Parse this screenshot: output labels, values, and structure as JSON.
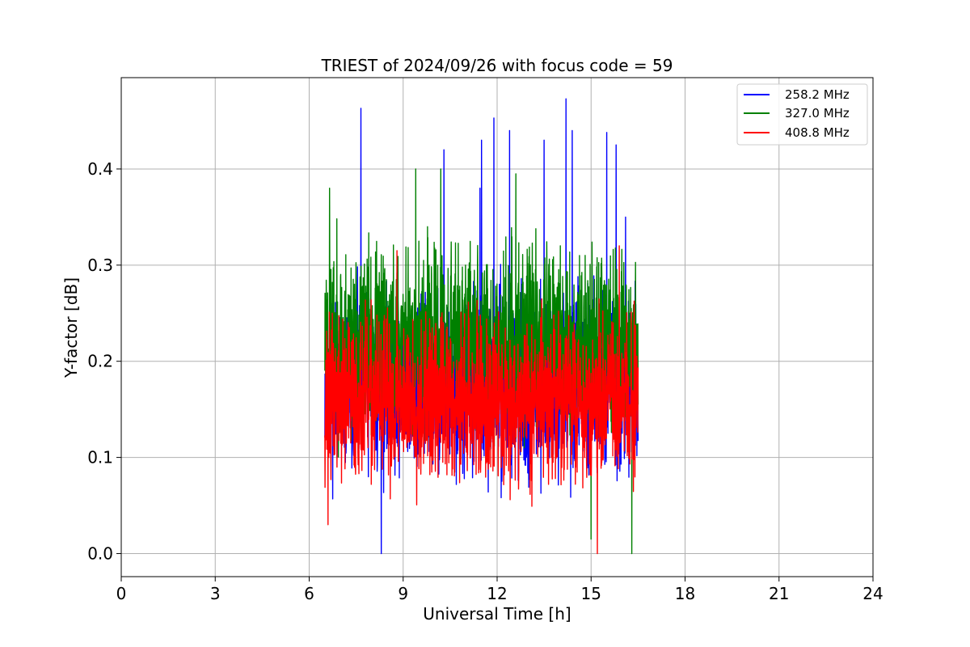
{
  "chart_data": {
    "type": "line",
    "title": "TRIEST of 2024/09/26 with focus code = 59",
    "xlabel": "Universal Time [h]",
    "ylabel": "Y-factor [dB]",
    "xlim": [
      0,
      24
    ],
    "ylim": [
      -0.024,
      0.495
    ],
    "xticks": [
      0,
      3,
      6,
      9,
      12,
      15,
      18,
      21,
      24
    ],
    "yticks": [
      0.0,
      0.1,
      0.2,
      0.3,
      0.4
    ],
    "ytick_labels": [
      "0.0",
      "0.1",
      "0.2",
      "0.3",
      "0.4"
    ],
    "grid": true,
    "legend_position": "top-right",
    "series": [
      {
        "name": "258.2 MHz",
        "color": "#0000ff",
        "x_range": [
          6.5,
          16.5
        ],
        "baseline": 0.175,
        "noise": 0.075,
        "peaks": [
          {
            "x": 7.65,
            "y": 0.463
          },
          {
            "x": 8.3,
            "y": 0.0
          },
          {
            "x": 10.3,
            "y": 0.42
          },
          {
            "x": 11.45,
            "y": 0.38
          },
          {
            "x": 11.9,
            "y": 0.453
          },
          {
            "x": 11.5,
            "y": 0.43
          },
          {
            "x": 12.4,
            "y": 0.44
          },
          {
            "x": 13.5,
            "y": 0.43
          },
          {
            "x": 14.2,
            "y": 0.473
          },
          {
            "x": 14.4,
            "y": 0.44
          },
          {
            "x": 15.5,
            "y": 0.438
          },
          {
            "x": 15.8,
            "y": 0.425
          },
          {
            "x": 16.1,
            "y": 0.35
          }
        ]
      },
      {
        "name": "327.0 MHz",
        "color": "#008000",
        "x_range": [
          6.5,
          16.5
        ],
        "baseline": 0.22,
        "noise": 0.08,
        "peaks": [
          {
            "x": 6.65,
            "y": 0.38
          },
          {
            "x": 9.4,
            "y": 0.4
          },
          {
            "x": 10.2,
            "y": 0.4
          },
          {
            "x": 12.6,
            "y": 0.395
          },
          {
            "x": 15.0,
            "y": 0.015
          },
          {
            "x": 16.3,
            "y": 0.0
          }
        ]
      },
      {
        "name": "408.8 MHz",
        "color": "#ff0000",
        "x_range": [
          6.5,
          16.5
        ],
        "baseline": 0.16,
        "noise": 0.07,
        "peaks": [
          {
            "x": 6.6,
            "y": 0.03
          },
          {
            "x": 8.8,
            "y": 0.315
          },
          {
            "x": 15.2,
            "y": 0.0
          },
          {
            "x": 15.9,
            "y": 0.32
          }
        ]
      }
    ]
  }
}
